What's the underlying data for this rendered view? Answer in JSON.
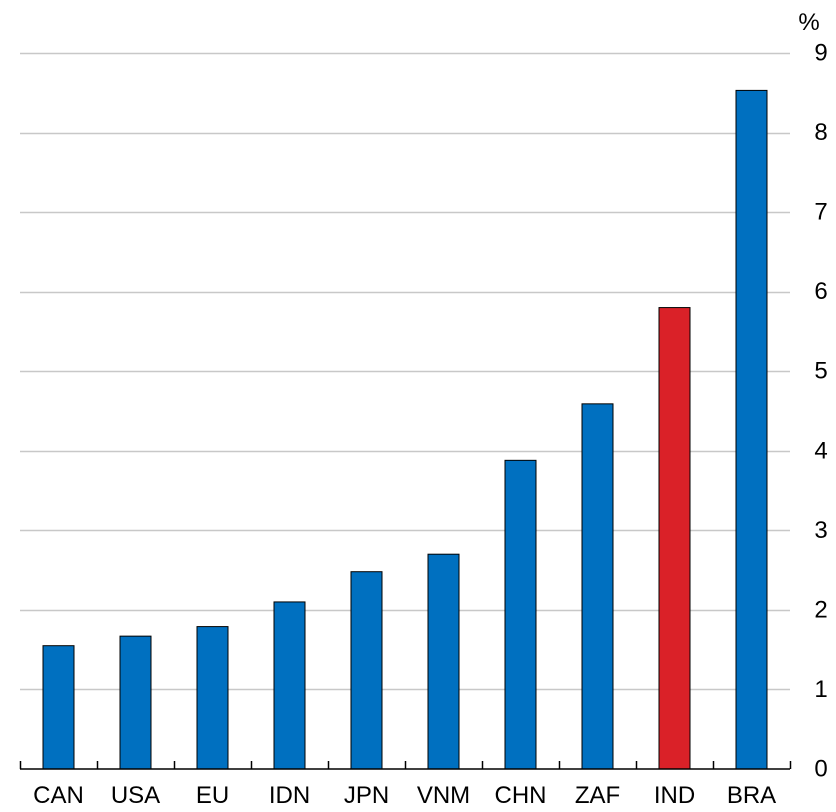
{
  "chart_data": {
    "type": "bar",
    "title": "",
    "xlabel": "",
    "ylabel": "",
    "unit_label": "%",
    "categories": [
      "CAN",
      "USA",
      "EU",
      "IDN",
      "JPN",
      "VNM",
      "CHN",
      "ZAF",
      "IND",
      "BRA"
    ],
    "values": [
      1.55,
      1.67,
      1.79,
      2.1,
      2.48,
      2.7,
      3.88,
      4.59,
      5.8,
      8.53
    ],
    "ylim": [
      0,
      9
    ],
    "yticks": [
      0,
      1,
      2,
      3,
      4,
      5,
      6,
      7,
      8,
      9
    ],
    "y_axis_side": "right",
    "grid": true,
    "legend": "none",
    "colors": {
      "bar": "#0070C0",
      "highlight": "#DA2128",
      "highlight_category": "IND",
      "grid": "#C8C8C8",
      "axis": "#000000"
    }
  }
}
